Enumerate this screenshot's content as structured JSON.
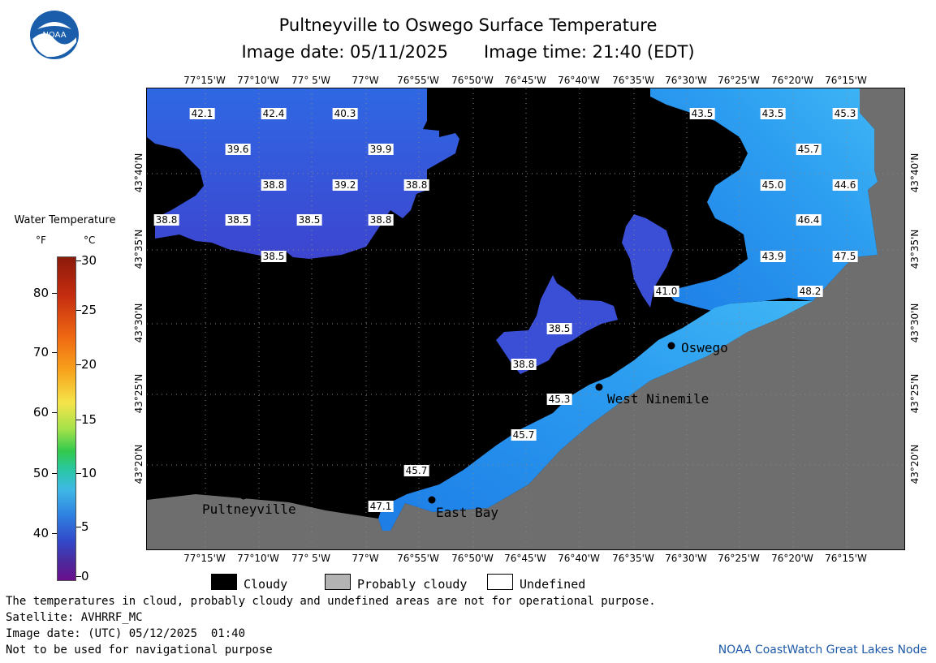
{
  "header": {
    "title": "Pultneyville to Oswego Surface Temperature",
    "image_date": "Image date: 05/11/2025",
    "image_time": "Image time: 21:40 (EDT)",
    "logo_text": "NOAA"
  },
  "map": {
    "lon_labels": [
      "77°15'W",
      "77°10'W",
      "77° 5'W",
      "77°W",
      "76°55'W",
      "76°50'W",
      "76°45'W",
      "76°40'W",
      "76°35'W",
      "76°30'W",
      "76°25'W",
      "76°20'W",
      "76°15'W"
    ],
    "lat_labels": [
      "43°40'N",
      "43°35'N",
      "43°30'N",
      "43°25'N",
      "43°20'N"
    ],
    "temperature_labels_f": [
      "42.1",
      "42.4",
      "40.3",
      "43.5",
      "43.5",
      "45.3",
      "39.6",
      "39.9",
      "45.7",
      "38.8",
      "39.2",
      "38.8",
      "45.0",
      "44.6",
      "38.8",
      "38.5",
      "38.5",
      "38.8",
      "46.4",
      "38.5",
      "43.9",
      "47.5",
      "41.0",
      "48.2",
      "38.5",
      "38.8",
      "45.3",
      "45.7",
      "45.7",
      "47.1"
    ],
    "cities": [
      {
        "name": "Oswego"
      },
      {
        "name": "West Ninemile"
      },
      {
        "name": "Pultneyville"
      },
      {
        "name": "East Bay"
      }
    ],
    "colors": {
      "cloudy": "#000000",
      "land": "#6e6e6e",
      "water_cold": "#3b4fd6",
      "water_warm": "#2e9cf0"
    }
  },
  "colorbar": {
    "title": "Water Temperature",
    "unit_f": "°F",
    "unit_c": "°C",
    "ticks_f": [
      "80",
      "70",
      "60",
      "50",
      "40"
    ],
    "ticks_c": [
      "30",
      "25",
      "20",
      "15",
      "10",
      "5",
      "0"
    ]
  },
  "legend": {
    "cloudy": "Cloudy",
    "probably_cloudy": "Probably cloudy",
    "undefined": "Undefined"
  },
  "footer": {
    "note": "The temperatures in cloud, probably cloudy and undefined areas are not for operational purpose.",
    "satellite": "Satellite: AVHRRF_MC",
    "utc_date": "Image date: (UTC) 05/12/2025  01:40",
    "nav_warning": "Not to be used for navigational purpose",
    "credit": "NOAA CoastWatch Great Lakes Node"
  }
}
